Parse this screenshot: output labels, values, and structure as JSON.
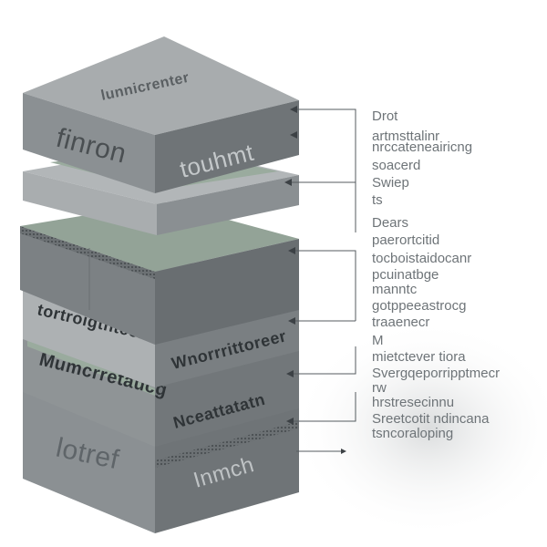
{
  "layers": [
    {
      "top_label": "lunnicrenter",
      "left_label": "finron",
      "right_label": "touhmt"
    },
    {
      "left_label": "",
      "right_label": ""
    },
    {
      "left_label": "",
      "right_label": ""
    },
    {
      "left_label": "tortroigthteer",
      "right_label": "Wnorrrittoreer"
    },
    {
      "left_label": "Mumcrretaucg",
      "right_label": "Nceattatatn"
    },
    {
      "left_label": "lotref",
      "right_label": "Inmch"
    }
  ],
  "callouts": [
    "Drot",
    "artmsttalinr",
    "nrccateneairicng",
    "soacerd",
    "Swiep",
    "ts",
    "Dears",
    "paerortcitid",
    "tocboistaidocanr",
    "pcuinatbge",
    "manntc",
    "gotppeeastrocg",
    "traaenecr",
    "M",
    "mietctever tiora",
    "Svergqeporripptmecr",
    "rw",
    "hrstresecinnu",
    "Sreetcotit ndincana",
    "tsncoraloping"
  ],
  "colors": {
    "slab_top": "#a8acae",
    "slab_left": "#8b9093",
    "slab_right": "#6f7477",
    "membrane_green": "#9aab9e",
    "membrane_green_dark": "#7d8f82",
    "text_dark": "#5f6569",
    "leader_line": "#555b5f"
  }
}
